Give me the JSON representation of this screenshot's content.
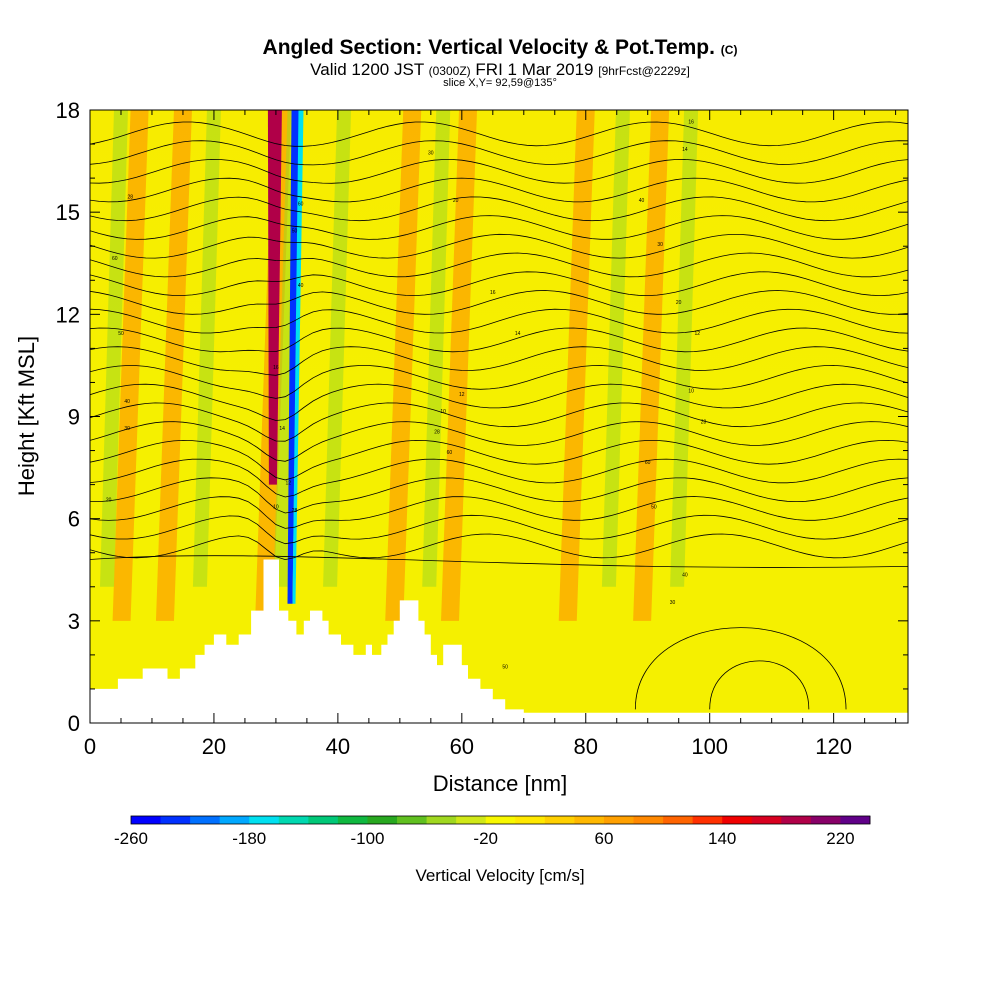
{
  "chart_data": {
    "type": "heatmap",
    "title": "Angled Section: Vertical Velocity & Pot.Temp.",
    "title_mark": "(C)",
    "subtitle_a": "Valid 1200 JST",
    "subtitle_b": "(0300Z)",
    "subtitle_c": "FRI 1 Mar 2019",
    "subtitle_d": "[9hrFcst@2229z]",
    "slice_label": "slice X,Y= 92,59@135°",
    "xlabel": "Distance [nm]",
    "ylabel": "Height [Kft MSL]",
    "xlim": [
      0,
      132
    ],
    "ylim": [
      0,
      18
    ],
    "x_ticks": [
      0,
      20,
      40,
      60,
      80,
      100,
      120
    ],
    "y_ticks": [
      0,
      3,
      6,
      9,
      12,
      15,
      18
    ],
    "colorbar_label": "Vertical Velocity [cm/s]",
    "colorbar_ticks": [
      -260,
      -180,
      -100,
      -20,
      60,
      140,
      220
    ],
    "colorbar_range": [
      -260,
      240
    ],
    "colorbar_colors": [
      "#0000ff",
      "#0030ff",
      "#0070ff",
      "#00a8ff",
      "#00e0f0",
      "#00d8b0",
      "#00c878",
      "#10b840",
      "#28a820",
      "#60c020",
      "#a0d820",
      "#d0e818",
      "#f8f800",
      "#ffe800",
      "#ffd000",
      "#ffb800",
      "#ffa000",
      "#ff8800",
      "#ff6400",
      "#ff3000",
      "#f00000",
      "#d80020",
      "#b00048",
      "#880068",
      "#600088"
    ],
    "terrain_ridge_peaks": [
      {
        "x": 31,
        "height": 4.8
      },
      {
        "x": 51,
        "height": 3.6
      },
      {
        "x": 60,
        "height": 2.2
      }
    ],
    "updraft_bands_x_at_top": [
      8,
      15,
      31,
      52,
      61,
      80,
      92
    ],
    "downdraft_bands_x_at_top": [
      5,
      20,
      33,
      41,
      57,
      86,
      97
    ],
    "strongest_updraft": {
      "x": 30,
      "value": 180
    },
    "strongest_downdraft": {
      "x": 33,
      "value": -240
    },
    "contour_labels": [
      "28",
      "60",
      "50",
      "40",
      "30",
      "20",
      "16",
      "14",
      "12",
      "10"
    ]
  }
}
